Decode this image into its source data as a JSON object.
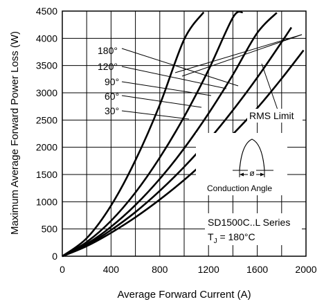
{
  "chart_data": {
    "type": "line",
    "title": "",
    "xlabel": "Average Forward Current (A)",
    "ylabel": "Maximum Average Forward Power Loss (W)",
    "xlim": [
      0,
      2000
    ],
    "ylim": [
      0,
      4500
    ],
    "x_ticks": [
      "0",
      "400",
      "800",
      "1200",
      "1600",
      "2000"
    ],
    "y_ticks": [
      "0",
      "500",
      "1000",
      "1500",
      "2000",
      "2500",
      "3000",
      "3500",
      "4000",
      "4500"
    ],
    "grid": true,
    "series": [
      {
        "name": "180°",
        "x": [
          0,
          200,
          400,
          600,
          800,
          1000,
          1200,
          1400,
          1600,
          1800,
          1980
        ],
        "y": [
          0,
          185,
          430,
          715,
          1040,
          1400,
          1800,
          2240,
          2720,
          3260,
          3780
        ]
      },
      {
        "name": "120°",
        "x": [
          0,
          200,
          400,
          600,
          800,
          1000,
          1200,
          1400,
          1600,
          1800,
          1880
        ],
        "y": [
          0,
          205,
          480,
          810,
          1200,
          1640,
          2130,
          2680,
          3280,
          3930,
          4200
        ]
      },
      {
        "name": "90°",
        "x": [
          0,
          200,
          400,
          600,
          800,
          1000,
          1200,
          1400,
          1600,
          1760
        ],
        "y": [
          0,
          225,
          540,
          940,
          1420,
          1980,
          2620,
          3330,
          4100,
          4470
        ]
      },
      {
        "name": "60°",
        "x": [
          0,
          200,
          400,
          600,
          800,
          1000,
          1200,
          1400,
          1480
        ],
        "y": [
          0,
          260,
          650,
          1170,
          1810,
          2560,
          3420,
          4380,
          4480
        ]
      },
      {
        "name": "30°",
        "x": [
          0,
          200,
          400,
          600,
          800,
          1000,
          1160
        ],
        "y": [
          0,
          330,
          930,
          1760,
          2780,
          3980,
          4480
        ]
      }
    ],
    "annotations": {
      "rms_limit": "RMS Limit",
      "conduction_angle": "Conduction Angle",
      "phi_symbol": "ø",
      "series_label": "SD1500C..L Series",
      "tj_label": "T",
      "tj_sub": "J",
      "tj_value": " = 180°C"
    }
  }
}
